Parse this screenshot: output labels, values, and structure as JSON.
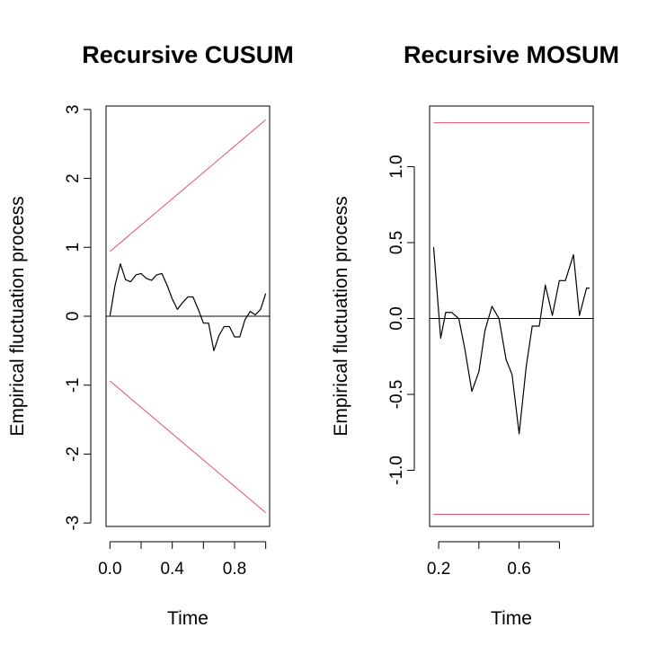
{
  "chart_data": [
    {
      "type": "line",
      "title": "Recursive CUSUM",
      "xlabel": "Time",
      "ylabel": "Empirical fluctuation process",
      "xlim": [
        -0.025,
        1.025
      ],
      "ylim": [
        -3.05,
        3.05
      ],
      "xticks": [
        0.0,
        0.4,
        0.8
      ],
      "xtick_labels": [
        "0.0",
        "0.4",
        "0.8"
      ],
      "xtick_marks": [
        0.0,
        0.2,
        0.4,
        0.6,
        0.8,
        1.0
      ],
      "yticks": [
        -3,
        -2,
        -1,
        0,
        1,
        2,
        3
      ],
      "ytick_labels": [
        "-3",
        "-2",
        "-1",
        "0",
        "1",
        "2",
        "3"
      ],
      "reference_line": 0,
      "boundary_color": "#DF536B",
      "boundaries": {
        "upper": {
          "x": [
            0.0,
            1.0
          ],
          "y": [
            0.94,
            2.85
          ]
        },
        "lower": {
          "x": [
            0.0,
            1.0
          ],
          "y": [
            -0.94,
            -2.85
          ]
        }
      },
      "series": [
        {
          "color": "#000000",
          "x": [
            0.0,
            0.033,
            0.067,
            0.1,
            0.133,
            0.167,
            0.2,
            0.233,
            0.267,
            0.3,
            0.333,
            0.367,
            0.4,
            0.433,
            0.467,
            0.5,
            0.533,
            0.567,
            0.6,
            0.633,
            0.667,
            0.7,
            0.733,
            0.767,
            0.8,
            0.833,
            0.867,
            0.9,
            0.933,
            0.967,
            1.0
          ],
          "y": [
            0.0,
            0.45,
            0.76,
            0.53,
            0.5,
            0.6,
            0.62,
            0.55,
            0.52,
            0.6,
            0.62,
            0.45,
            0.25,
            0.1,
            0.2,
            0.28,
            0.28,
            0.1,
            -0.1,
            -0.1,
            -0.5,
            -0.28,
            -0.15,
            -0.15,
            -0.3,
            -0.3,
            -0.05,
            0.07,
            0.02,
            0.1,
            0.33
          ]
        }
      ]
    },
    {
      "type": "line",
      "title": "Recursive MOSUM",
      "xlabel": "Time",
      "ylabel": "Empirical fluctuation process",
      "xlim": [
        0.155,
        0.968
      ],
      "ylim": [
        -1.37,
        1.4
      ],
      "xticks": [
        0.2,
        0.6
      ],
      "xtick_labels": [
        "0.2",
        "0.6"
      ],
      "xtick_marks": [
        0.2,
        0.4,
        0.6,
        0.8
      ],
      "yticks": [
        -1.0,
        -0.5,
        0.0,
        0.5,
        1.0
      ],
      "ytick_labels": [
        "-1.0",
        "-0.5",
        "0.0",
        "0.5",
        "1.0"
      ],
      "reference_line": 0,
      "boundary_color": "#DF536B",
      "boundaries": {
        "upper": {
          "x": [
            0.175,
            0.95
          ],
          "y": [
            1.29,
            1.29
          ]
        },
        "lower": {
          "x": [
            0.175,
            0.95
          ],
          "y": [
            -1.29,
            -1.29
          ]
        }
      },
      "series": [
        {
          "color": "#000000",
          "x": [
            0.175,
            0.21,
            0.235,
            0.265,
            0.3,
            0.33,
            0.365,
            0.4,
            0.43,
            0.465,
            0.5,
            0.535,
            0.565,
            0.6,
            0.635,
            0.665,
            0.7,
            0.73,
            0.765,
            0.8,
            0.83,
            0.87,
            0.9,
            0.935,
            0.95
          ],
          "y": [
            0.47,
            -0.13,
            0.04,
            0.04,
            0.0,
            -0.2,
            -0.48,
            -0.35,
            -0.08,
            0.08,
            0.0,
            -0.27,
            -0.37,
            -0.76,
            -0.32,
            -0.05,
            -0.05,
            0.22,
            0.02,
            0.25,
            0.25,
            0.42,
            0.02,
            0.2,
            0.2
          ]
        }
      ]
    }
  ]
}
